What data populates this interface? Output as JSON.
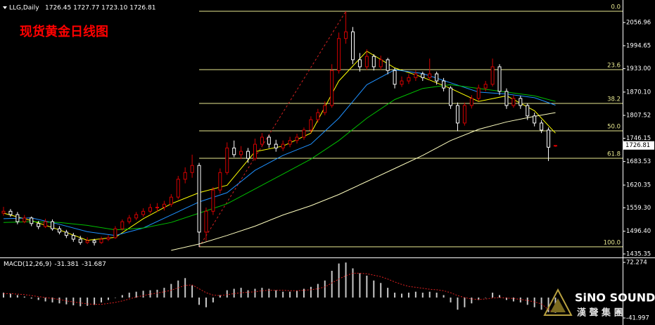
{
  "chart_data": {
    "type": "candlestick",
    "title": "现货黄金日线图",
    "header": "LLG,Daily",
    "header_ohlc": "1726.45 1727.77 1723.10 1726.81",
    "up_color": "#d40000",
    "down_color": "#ffffff",
    "ylim": [
      1427.8,
      2117.4
    ],
    "yticks": [
      2056.96,
      1994.65,
      {
        "value": 1933,
        "label": "1933.00"
      },
      {
        "value": 1870.1,
        "label": "1870.10"
      },
      1807.52,
      1746.15,
      1683.53,
      1620.35,
      {
        "value": 1559.3,
        "label": "1559.30"
      },
      {
        "value": 1496.4,
        "label": "1496.40"
      },
      1435.35
    ],
    "candles": [
      [
        1545,
        1562,
        1538,
        1550
      ],
      [
        1550,
        1556,
        1535,
        1541
      ],
      [
        1541,
        1548,
        1515,
        1522
      ],
      [
        1522,
        1540,
        1518,
        1532
      ],
      [
        1532,
        1536,
        1510,
        1517
      ],
      [
        1517,
        1524,
        1502,
        1509
      ],
      [
        1509,
        1530,
        1505,
        1522
      ],
      [
        1522,
        1528,
        1498,
        1503
      ],
      [
        1503,
        1510,
        1488,
        1494
      ],
      [
        1494,
        1500,
        1478,
        1485
      ],
      [
        1485,
        1492,
        1468,
        1475
      ],
      [
        1475,
        1484,
        1460,
        1466
      ],
      [
        1466,
        1480,
        1462,
        1471
      ],
      [
        1471,
        1476,
        1458,
        1466
      ],
      [
        1466,
        1482,
        1462,
        1475
      ],
      [
        1475,
        1486,
        1470,
        1479
      ],
      [
        1479,
        1510,
        1476,
        1503
      ],
      [
        1503,
        1528,
        1498,
        1522
      ],
      [
        1522,
        1540,
        1516,
        1532
      ],
      [
        1532,
        1548,
        1526,
        1541
      ],
      [
        1541,
        1558,
        1535,
        1550
      ],
      [
        1550,
        1570,
        1544,
        1560
      ],
      [
        1560,
        1572,
        1548,
        1561
      ],
      [
        1561,
        1578,
        1552,
        1569
      ],
      [
        1569,
        1596,
        1562,
        1588
      ],
      [
        1588,
        1645,
        1582,
        1636
      ],
      [
        1636,
        1668,
        1625,
        1654
      ],
      [
        1654,
        1702,
        1640,
        1673
      ],
      [
        1673,
        1680,
        1454,
        1494
      ],
      [
        1494,
        1560,
        1470,
        1550
      ],
      [
        1550,
        1615,
        1540,
        1607
      ],
      [
        1607,
        1665,
        1598,
        1654
      ],
      [
        1654,
        1735,
        1648,
        1720
      ],
      [
        1720,
        1740,
        1695,
        1702
      ],
      [
        1702,
        1725,
        1690,
        1711
      ],
      [
        1711,
        1720,
        1680,
        1692
      ],
      [
        1692,
        1745,
        1686,
        1730
      ],
      [
        1730,
        1760,
        1722,
        1749
      ],
      [
        1749,
        1755,
        1720,
        1730
      ],
      [
        1730,
        1742,
        1710,
        1720
      ],
      [
        1720,
        1740,
        1712,
        1730
      ],
      [
        1730,
        1750,
        1722,
        1740
      ],
      [
        1740,
        1758,
        1732,
        1749
      ],
      [
        1749,
        1775,
        1742,
        1768
      ],
      [
        1768,
        1805,
        1760,
        1796
      ],
      [
        1796,
        1825,
        1788,
        1815
      ],
      [
        1815,
        1845,
        1808,
        1834
      ],
      [
        1834,
        1945,
        1828,
        1928
      ],
      [
        1928,
        2030,
        1920,
        2014
      ],
      [
        2014,
        2087,
        2000,
        2032
      ],
      [
        2032,
        2045,
        1945,
        1957
      ],
      [
        1957,
        1975,
        1925,
        1938
      ],
      [
        1938,
        1985,
        1930,
        1966
      ],
      [
        1966,
        1972,
        1928,
        1938
      ],
      [
        1938,
        1968,
        1930,
        1957
      ],
      [
        1957,
        1962,
        1918,
        1928
      ],
      [
        1928,
        1935,
        1880,
        1891
      ],
      [
        1891,
        1912,
        1884,
        1900
      ],
      [
        1900,
        1918,
        1892,
        1909
      ],
      [
        1909,
        1928,
        1900,
        1919
      ],
      [
        1919,
        1925,
        1900,
        1909
      ],
      [
        1909,
        1960,
        1902,
        1919
      ],
      [
        1919,
        1925,
        1890,
        1900
      ],
      [
        1900,
        1908,
        1872,
        1881
      ],
      [
        1881,
        1886,
        1825,
        1834
      ],
      [
        1834,
        1842,
        1765,
        1787
      ],
      [
        1787,
        1842,
        1780,
        1834
      ],
      [
        1834,
        1862,
        1826,
        1853
      ],
      [
        1853,
        1890,
        1846,
        1881
      ],
      [
        1881,
        1900,
        1872,
        1891
      ],
      [
        1891,
        1960,
        1885,
        1938
      ],
      [
        1938,
        1945,
        1862,
        1872
      ],
      [
        1872,
        1880,
        1825,
        1834
      ],
      [
        1834,
        1862,
        1828,
        1853
      ],
      [
        1853,
        1860,
        1825,
        1834
      ],
      [
        1834,
        1840,
        1795,
        1806
      ],
      [
        1806,
        1815,
        1778,
        1787
      ],
      [
        1787,
        1795,
        1760,
        1768
      ],
      [
        1768,
        1775,
        1685,
        1722
      ],
      [
        1726.45,
        1727.77,
        1723.1,
        1726.81
      ]
    ],
    "ma_x": [
      0,
      4,
      8,
      12,
      16,
      20,
      24,
      28,
      32,
      36,
      40,
      44,
      48,
      52,
      56,
      60,
      64,
      68,
      72,
      76,
      79
    ],
    "ma": [
      {
        "color": "#ffff00",
        "values": [
          1545,
          1525,
          1500,
          1472,
          1480,
          1530,
          1570,
          1600,
          1620,
          1710,
          1725,
          1760,
          1900,
          1980,
          1935,
          1910,
          1880,
          1845,
          1860,
          1820,
          1760
        ]
      },
      {
        "color": "#1e90ff",
        "values": [
          1530,
          1532,
          1515,
          1495,
          1485,
          1505,
          1540,
          1575,
          1600,
          1660,
          1700,
          1730,
          1800,
          1890,
          1930,
          1920,
          1895,
          1870,
          1865,
          1855,
          1835
        ]
      },
      {
        "color": "#00c000",
        "values": [
          1520,
          1522,
          1520,
          1512,
          1500,
          1505,
          1520,
          1545,
          1570,
          1610,
          1650,
          1690,
          1740,
          1800,
          1850,
          1880,
          1890,
          1880,
          1870,
          1860,
          1845
        ]
      },
      {
        "color": "#ffffc0",
        "values": [
          null,
          null,
          null,
          null,
          null,
          null,
          1445,
          1462,
          1485,
          1510,
          1540,
          1565,
          1595,
          1630,
          1665,
          1700,
          1740,
          1770,
          1790,
          1805,
          1815
        ]
      }
    ],
    "trendline": {
      "from": [
        28,
        1454
      ],
      "to": [
        49,
        2087
      ]
    },
    "fib": {
      "levels": [
        {
          "value": 0,
          "label": "0.0"
        },
        {
          "value": 23.6,
          "label": "23.6"
        },
        {
          "value": 38.2,
          "label": "38.2"
        },
        {
          "value": 50,
          "label": "50.0"
        },
        {
          "value": 61.8,
          "label": "61.8"
        },
        {
          "value": 100,
          "label": "100.0"
        }
      ],
      "prices": [
        2087.2,
        1930.4,
        1839.7,
        1766.0,
        1692.4,
        1454.4
      ]
    },
    "macd": {
      "label": "MACD(12,26,9)",
      "ylim": [
        -56.46,
        80.95
      ],
      "yticks": [
        72.274,
        -41.997
      ],
      "values": [
        10,
        8,
        5,
        2,
        -2,
        -5,
        -8,
        -10,
        -12,
        -14,
        -16,
        -18,
        -17,
        -15,
        -10,
        -5,
        0,
        5,
        10,
        12,
        14,
        15,
        16,
        20,
        28,
        35,
        40,
        25,
        -15,
        -20,
        -10,
        5,
        15,
        18,
        20,
        15,
        18,
        20,
        18,
        15,
        12,
        12,
        14,
        18,
        22,
        28,
        35,
        55,
        70,
        72,
        60,
        50,
        45,
        35,
        30,
        20,
        10,
        8,
        10,
        12,
        10,
        12,
        10,
        5,
        -10,
        -25,
        -20,
        -12,
        -5,
        0,
        10,
        5,
        -5,
        -8,
        -10,
        -15,
        -20,
        -25,
        -30,
        -31.381
      ],
      "signal": [
        8,
        8,
        7,
        6,
        4,
        2,
        0,
        -2,
        -4,
        -7,
        -9,
        -11,
        -13,
        -14,
        -14,
        -12,
        -10,
        -7,
        -3,
        1,
        4,
        7,
        9,
        12,
        15,
        20,
        25,
        26,
        18,
        10,
        5,
        4,
        6,
        8,
        10,
        11,
        12,
        14,
        15,
        15,
        15,
        14,
        14,
        15,
        16,
        18,
        22,
        30,
        38,
        45,
        50,
        50,
        49,
        46,
        43,
        38,
        32,
        27,
        23,
        21,
        19,
        17,
        16,
        14,
        10,
        4,
        0,
        -3,
        -4,
        -3,
        -1,
        0,
        -1,
        -2,
        -4,
        -6,
        -9,
        -13,
        -25,
        -31.687
      ]
    },
    "watermark": {
      "name": "SiNO SOUND",
      "sub": "漢 聲 集 團"
    }
  }
}
